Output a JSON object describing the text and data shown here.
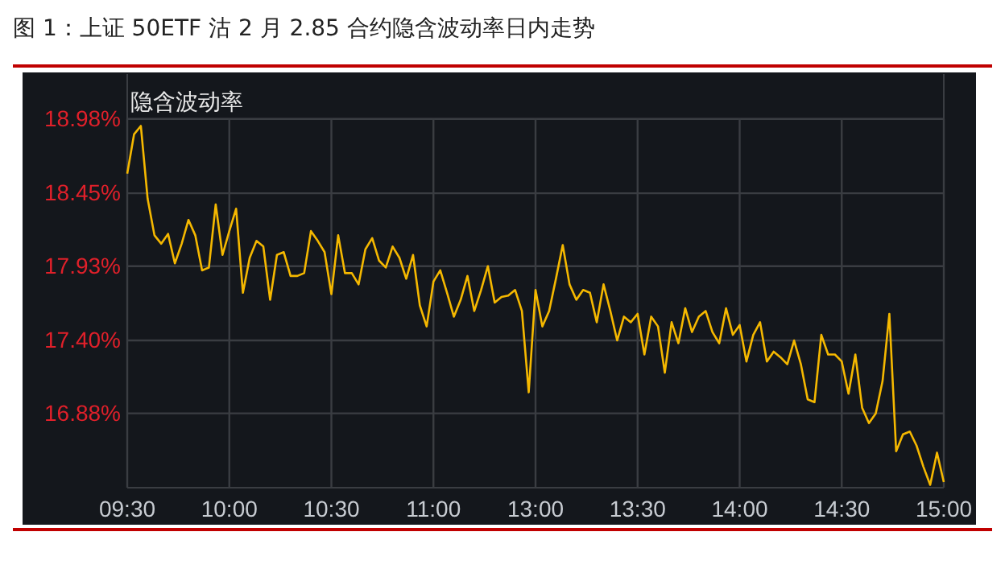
{
  "chart_data": {
    "type": "line",
    "title": "图 1：上证 50ETF 沽 2 月 2.85 合约隐含波动率日内走势",
    "ylabel": "隐含波动率",
    "categories": [
      "09:30",
      null,
      null,
      null,
      null,
      null,
      null,
      null,
      null,
      null,
      null,
      null,
      null,
      null,
      null,
      "10:00",
      null,
      null,
      null,
      null,
      null,
      null,
      null,
      null,
      null,
      null,
      null,
      null,
      null,
      null,
      "10:30",
      null,
      null,
      null,
      null,
      null,
      null,
      null,
      null,
      null,
      null,
      null,
      null,
      null,
      null,
      "11:00",
      null,
      null,
      null,
      null,
      null,
      null,
      null,
      null,
      null,
      null,
      null,
      null,
      null,
      null,
      "13:00",
      null,
      null,
      null,
      null,
      null,
      null,
      null,
      null,
      null,
      null,
      null,
      null,
      null,
      null,
      "13:30",
      null,
      null,
      null,
      null,
      null,
      null,
      null,
      null,
      null,
      null,
      null,
      null,
      null,
      null,
      "14:00",
      null,
      null,
      null,
      null,
      null,
      null,
      null,
      null,
      null,
      null,
      null,
      null,
      null,
      null,
      "14:30",
      null,
      null,
      null,
      null,
      null,
      null,
      null,
      null,
      null,
      null,
      null,
      null,
      null,
      null,
      "15:00"
    ],
    "ylim": [
      16.35,
      19.3
    ],
    "yticks": [
      {
        "value": 16.88,
        "label": "16.88%"
      },
      {
        "value": 17.4,
        "label": "17.40%"
      },
      {
        "value": 17.93,
        "label": "17.93%"
      },
      {
        "value": 18.45,
        "label": "18.45%"
      },
      {
        "value": 18.98,
        "label": "18.98%"
      }
    ],
    "grid": true,
    "marker": "none",
    "line_style": "solid",
    "series": [
      {
        "color": "#f5b800",
        "values": [
          18.59,
          18.87,
          18.93,
          18.41,
          18.15,
          18.09,
          18.16,
          17.95,
          18.09,
          18.26,
          18.15,
          17.9,
          17.92,
          18.37,
          18.01,
          18.18,
          18.34,
          17.74,
          17.99,
          18.11,
          18.07,
          17.69,
          18.01,
          18.03,
          17.86,
          17.86,
          17.88,
          18.18,
          18.11,
          18.03,
          17.73,
          18.15,
          17.88,
          17.88,
          17.8,
          18.05,
          18.13,
          17.97,
          17.92,
          18.07,
          17.99,
          17.84,
          18.01,
          17.65,
          17.5,
          17.82,
          17.9,
          17.74,
          17.57,
          17.69,
          17.86,
          17.61,
          17.76,
          17.93,
          17.67,
          17.71,
          17.72,
          17.76,
          17.61,
          17.03,
          17.76,
          17.5,
          17.61,
          17.84,
          18.08,
          17.8,
          17.69,
          17.76,
          17.74,
          17.53,
          17.8,
          17.61,
          17.4,
          17.57,
          17.53,
          17.59,
          17.3,
          17.57,
          17.5,
          17.17,
          17.53,
          17.38,
          17.63,
          17.46,
          17.57,
          17.61,
          17.46,
          17.38,
          17.63,
          17.44,
          17.51,
          17.25,
          17.44,
          17.53,
          17.25,
          17.32,
          17.28,
          17.23,
          17.4,
          17.23,
          16.98,
          16.96,
          17.44,
          17.3,
          17.3,
          17.25,
          17.02,
          17.3,
          16.92,
          16.81,
          16.88,
          17.11,
          17.59,
          16.61,
          16.73,
          16.75,
          16.65,
          16.5,
          16.37,
          16.6,
          16.39
        ]
      }
    ]
  }
}
